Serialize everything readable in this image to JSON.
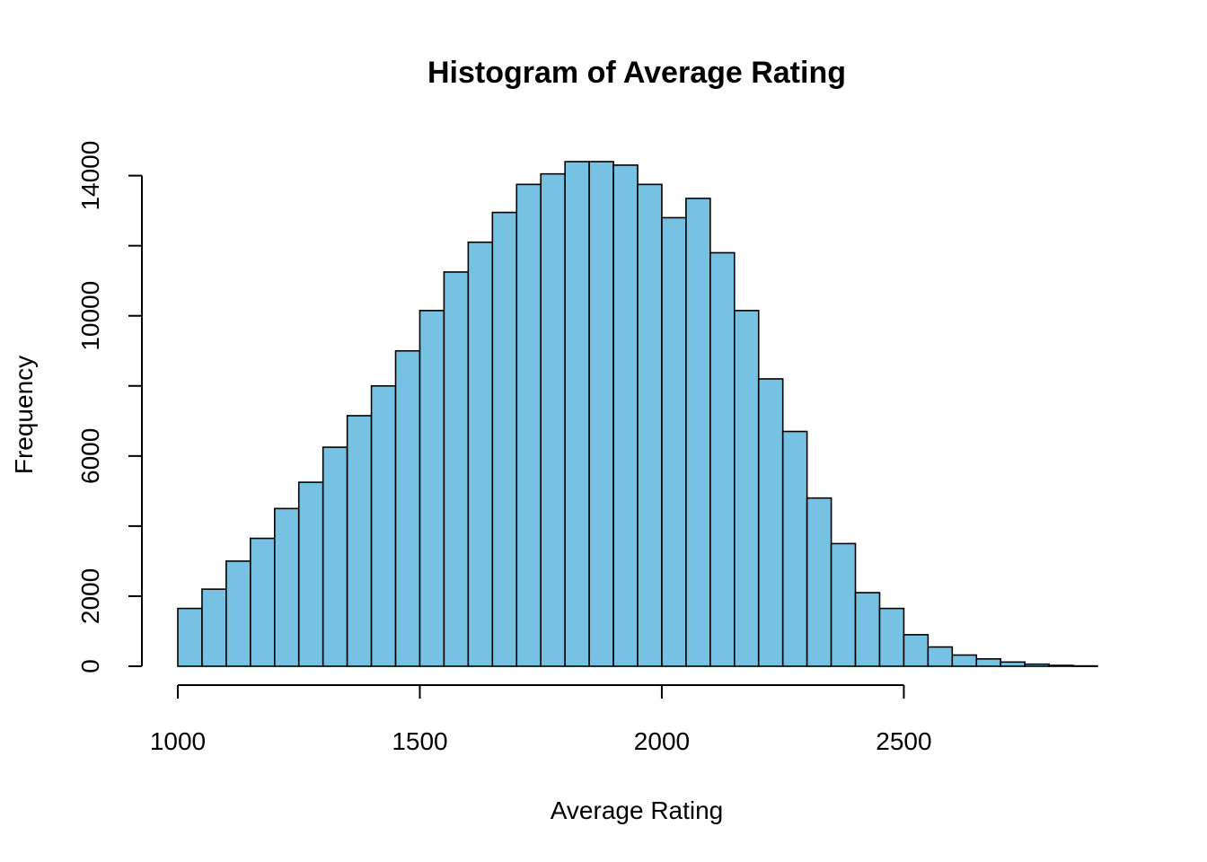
{
  "chart_data": {
    "type": "bar",
    "title": "Histogram of Average Rating",
    "xlabel": "Average Rating",
    "ylabel": "Frequency",
    "bar_color": "#77C2E3",
    "bin_width": 50,
    "bins_start": [
      1000,
      1050,
      1100,
      1150,
      1200,
      1250,
      1300,
      1350,
      1400,
      1450,
      1500,
      1550,
      1600,
      1650,
      1700,
      1750,
      1800,
      1850,
      1900,
      1950,
      2000,
      2050,
      2100,
      2150,
      2200,
      2250,
      2300,
      2350,
      2400,
      2450,
      2500,
      2550,
      2600,
      2650,
      2700,
      2750,
      2800,
      2850
    ],
    "values": [
      1650,
      2200,
      3000,
      3650,
      4500,
      5250,
      6250,
      7150,
      8000,
      9000,
      10150,
      11250,
      12100,
      12950,
      13750,
      14050,
      14400,
      14400,
      14300,
      13750,
      12800,
      13350,
      11800,
      10150,
      8200,
      6700,
      4800,
      3500,
      2100,
      1650,
      900,
      550,
      320,
      210,
      120,
      60,
      25,
      10
    ],
    "xlim": [
      1000,
      2900
    ],
    "ylim": [
      0,
      14400
    ],
    "x_ticks": [
      {
        "value": 1000,
        "label": "1000"
      },
      {
        "value": 1500,
        "label": "1500"
      },
      {
        "value": 2000,
        "label": "2000"
      },
      {
        "value": 2500,
        "label": "2500"
      }
    ],
    "y_ticks": [
      0,
      2000,
      4000,
      6000,
      8000,
      10000,
      12000,
      14000
    ],
    "y_tick_labels": [
      {
        "value": 0,
        "label": "0"
      },
      {
        "value": 2000,
        "label": "2000"
      },
      {
        "value": 6000,
        "label": "6000"
      },
      {
        "value": 10000,
        "label": "10000"
      },
      {
        "value": 14000,
        "label": "14000"
      }
    ],
    "grid": false,
    "legend": "none"
  }
}
